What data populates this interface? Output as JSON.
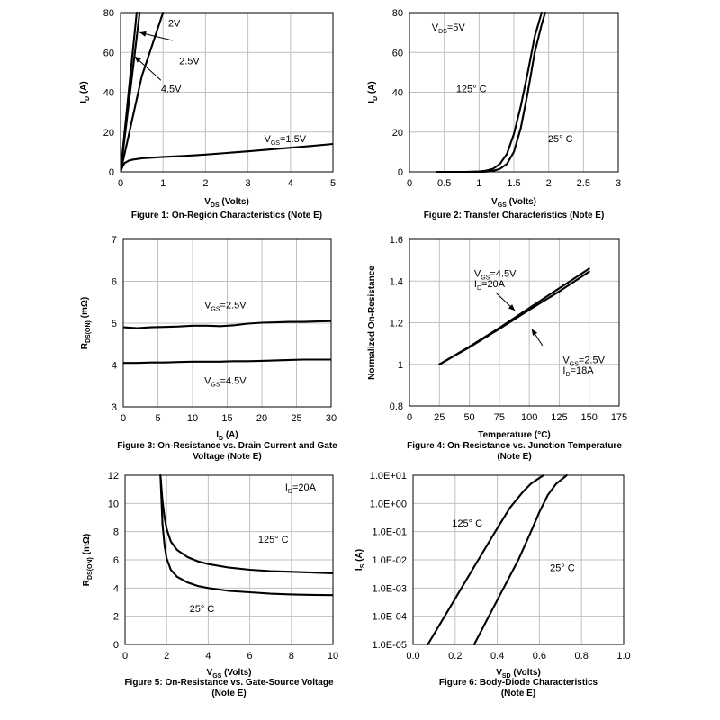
{
  "chart_data": [
    {
      "type": "line",
      "caption": "Figure 1: On-Region Characteristics (Note E)",
      "xlabel": {
        "main": "V",
        "sub": "DS",
        "rest": " (Volts)"
      },
      "ylabel": {
        "main": "I",
        "sub": "D",
        "rest": " (A)"
      },
      "xlim": [
        0,
        5
      ],
      "ylim": [
        0,
        80
      ],
      "xticks": [
        0,
        1,
        2,
        3,
        4,
        5
      ],
      "yticks": [
        0,
        20,
        40,
        60,
        80
      ],
      "grid": true,
      "series": [
        {
          "name": "V_GS=1.5V",
          "x": [
            0,
            0.05,
            0.1,
            0.2,
            0.3,
            0.5,
            1,
            1.5,
            2,
            2.5,
            3,
            3.5,
            4,
            4.5,
            5
          ],
          "y": [
            0,
            3,
            4.5,
            5.7,
            6.2,
            6.8,
            7.5,
            8,
            8.7,
            9.5,
            10.3,
            11.2,
            12.1,
            13,
            14
          ]
        },
        {
          "name": "2V",
          "x": [
            0,
            0.5,
            1.0
          ],
          "y": [
            0,
            48,
            80
          ]
        },
        {
          "name": "2.5V",
          "x": [
            0,
            0.45
          ],
          "y": [
            0,
            80
          ]
        },
        {
          "name": "4.5V",
          "x": [
            0,
            0.38
          ],
          "y": [
            0,
            80
          ]
        }
      ],
      "annotations": [
        {
          "parts": [
            {
              "t": "2V"
            }
          ],
          "x": 1.12,
          "y": 73,
          "anchor": "start"
        },
        {
          "parts": [
            {
              "t": "2.5V"
            }
          ],
          "x": 1.38,
          "y": 54,
          "anchor": "start"
        },
        {
          "parts": [
            {
              "t": "4.5V"
            }
          ],
          "x": 0.95,
          "y": 40,
          "anchor": "start"
        },
        {
          "parts": [
            {
              "t": "V"
            },
            {
              "t": "GS",
              "sub": true
            },
            {
              "t": "=1.5V"
            }
          ],
          "x": 3.38,
          "y": 15,
          "anchor": "start"
        }
      ],
      "arrows": [
        {
          "from": [
            1.22,
            66
          ],
          "to": [
            0.45,
            70
          ]
        },
        {
          "from": [
            0.95,
            46
          ],
          "to": [
            0.33,
            58
          ]
        }
      ]
    },
    {
      "type": "line",
      "caption": "Figure 2: Transfer Characteristics (Note E)",
      "xlabel": {
        "main": "V",
        "sub": "GS",
        "rest": " (Volts)"
      },
      "ylabel": {
        "main": "I",
        "sub": "D",
        "rest": " (A)"
      },
      "xlim": [
        0,
        3
      ],
      "ylim": [
        0,
        80
      ],
      "xticks": [
        0,
        0.5,
        1,
        1.5,
        2,
        2.5,
        3
      ],
      "yticks": [
        0,
        20,
        40,
        60,
        80
      ],
      "grid": true,
      "series": [
        {
          "name": "125° C",
          "x": [
            0.4,
            0.8,
            1.0,
            1.1,
            1.2,
            1.3,
            1.4,
            1.5,
            1.6,
            1.7,
            1.8,
            1.9
          ],
          "y": [
            0,
            0,
            0.2,
            0.6,
            1.5,
            4,
            9,
            19,
            33,
            50,
            68,
            80
          ]
        },
        {
          "name": "25° C",
          "x": [
            0.4,
            0.8,
            1.0,
            1.1,
            1.2,
            1.3,
            1.4,
            1.5,
            1.6,
            1.7,
            1.8,
            1.9,
            1.95
          ],
          "y": [
            0,
            0,
            0,
            0.1,
            0.5,
            1.5,
            4,
            10,
            22,
            40,
            60,
            74,
            80
          ]
        }
      ],
      "annotations": [
        {
          "parts": [
            {
              "t": "V"
            },
            {
              "t": "DS",
              "sub": true
            },
            {
              "t": "=5V"
            }
          ],
          "x": 0.32,
          "y": 71,
          "anchor": "start"
        },
        {
          "parts": [
            {
              "t": "125° C"
            }
          ],
          "x": 0.67,
          "y": 40,
          "anchor": "start"
        },
        {
          "parts": [
            {
              "t": "25° C"
            }
          ],
          "x": 1.99,
          "y": 15,
          "anchor": "start"
        }
      ],
      "arrows": []
    },
    {
      "type": "line",
      "caption": [
        "Figure 3: On-Resistance vs. Drain Current and Gate",
        "Voltage (Note E)"
      ],
      "xlabel": {
        "main": "I",
        "sub": "D",
        "rest": " (A)"
      },
      "ylabel": {
        "main": "R",
        "sub": "DS(ON)",
        "rest": " (mΩ)"
      },
      "xlim": [
        0,
        30
      ],
      "ylim": [
        3,
        7
      ],
      "xticks": [
        0,
        5,
        10,
        15,
        20,
        25,
        30
      ],
      "yticks": [
        3,
        4,
        5,
        6,
        7
      ],
      "grid": true,
      "series": [
        {
          "name": "V_GS=2.5V",
          "x": [
            0,
            2,
            4,
            6,
            8,
            10,
            12,
            14,
            16,
            18,
            20,
            22,
            24,
            26,
            28,
            30
          ],
          "y": [
            4.9,
            4.88,
            4.9,
            4.91,
            4.92,
            4.94,
            4.94,
            4.93,
            4.95,
            4.99,
            5.01,
            5.02,
            5.03,
            5.03,
            5.04,
            5.05
          ]
        },
        {
          "name": "V_GS=4.5V",
          "x": [
            0,
            2,
            4,
            6,
            8,
            10,
            12,
            14,
            16,
            18,
            20,
            22,
            24,
            26,
            28,
            30
          ],
          "y": [
            4.05,
            4.05,
            4.06,
            4.06,
            4.07,
            4.08,
            4.08,
            4.08,
            4.09,
            4.09,
            4.1,
            4.11,
            4.12,
            4.13,
            4.13,
            4.13
          ]
        }
      ],
      "annotations": [
        {
          "parts": [
            {
              "t": "V"
            },
            {
              "t": "GS",
              "sub": true
            },
            {
              "t": "=2.5V"
            }
          ],
          "x": 11.7,
          "y": 5.35,
          "anchor": "start"
        },
        {
          "parts": [
            {
              "t": "V"
            },
            {
              "t": "GS",
              "sub": true
            },
            {
              "t": "=4.5V"
            }
          ],
          "x": 11.7,
          "y": 3.55,
          "anchor": "start"
        }
      ],
      "arrows": []
    },
    {
      "type": "line",
      "caption": [
        "Figure 4: On-Resistance vs. Junction Temperature",
        "(Note E)"
      ],
      "xlabel": {
        "main": "Temperature (°C)"
      },
      "ylabel": {
        "main": "Normalized On-Resistance"
      },
      "xlim": [
        0,
        175
      ],
      "ylim": [
        0.8,
        1.6
      ],
      "xticks": [
        0,
        25,
        50,
        75,
        100,
        125,
        150,
        175
      ],
      "yticks": [
        0.8,
        1,
        1.2,
        1.4,
        1.6
      ],
      "grid": true,
      "series": [
        {
          "name": "V_GS=4.5V I_D=20A",
          "x": [
            25,
            50,
            75,
            100,
            125,
            150
          ],
          "y": [
            1.0,
            1.085,
            1.175,
            1.27,
            1.365,
            1.46
          ]
        },
        {
          "name": "V_GS=2.5V I_D=18A",
          "x": [
            25,
            50,
            75,
            100,
            125,
            150
          ],
          "y": [
            1.0,
            1.082,
            1.17,
            1.262,
            1.35,
            1.445
          ]
        }
      ],
      "annotations": [
        {
          "parts": [
            {
              "t": "V"
            },
            {
              "t": "GS",
              "sub": true
            },
            {
              "t": "=4.5V"
            }
          ],
          "x": 54,
          "y": 1.42,
          "anchor": "start"
        },
        {
          "parts": [
            {
              "t": "I"
            },
            {
              "t": "D",
              "sub": true
            },
            {
              "t": "=20A"
            }
          ],
          "x": 54,
          "y": 1.37,
          "anchor": "start"
        },
        {
          "parts": [
            {
              "t": "V"
            },
            {
              "t": "GS",
              "sub": true
            },
            {
              "t": "=2.5V"
            }
          ],
          "x": 128,
          "y": 1.005,
          "anchor": "start"
        },
        {
          "parts": [
            {
              "t": "I"
            },
            {
              "t": "D",
              "sub": true
            },
            {
              "t": "=18A"
            }
          ],
          "x": 128,
          "y": 0.955,
          "anchor": "start"
        }
      ],
      "arrows": [
        {
          "from": [
            72,
            1.345
          ],
          "to": [
            88,
            1.258
          ]
        },
        {
          "from": [
            111,
            1.09
          ],
          "to": [
            102,
            1.17
          ]
        }
      ]
    },
    {
      "type": "line",
      "caption": [
        "Figure 5: On-Resistance vs. Gate-Source Voltage",
        "(Note E)"
      ],
      "xlabel": {
        "main": "V",
        "sub": "GS",
        "rest": " (Volts)"
      },
      "ylabel": {
        "main": "R",
        "sub": "DS(ON)",
        "rest": " (mΩ)"
      },
      "xlim": [
        0,
        10
      ],
      "ylim": [
        0,
        12
      ],
      "xticks": [
        0,
        2,
        4,
        6,
        8,
        10
      ],
      "yticks": [
        0,
        2,
        4,
        6,
        8,
        10,
        12
      ],
      "grid": true,
      "series": [
        {
          "name": "125° C",
          "x": [
            1.7,
            1.8,
            1.9,
            2.0,
            2.2,
            2.5,
            3,
            3.5,
            4,
            5,
            6,
            7,
            8,
            9,
            10
          ],
          "y": [
            12,
            10.2,
            9.0,
            8.2,
            7.3,
            6.7,
            6.2,
            5.9,
            5.7,
            5.45,
            5.3,
            5.2,
            5.15,
            5.1,
            5.05
          ]
        },
        {
          "name": "25° C",
          "x": [
            1.7,
            1.8,
            1.9,
            2.0,
            2.2,
            2.5,
            3,
            3.5,
            4,
            5,
            6,
            7,
            8,
            9,
            10
          ],
          "y": [
            12,
            8.5,
            7.0,
            6.1,
            5.3,
            4.8,
            4.4,
            4.15,
            4.0,
            3.8,
            3.7,
            3.6,
            3.55,
            3.52,
            3.5
          ]
        }
      ],
      "annotations": [
        {
          "parts": [
            {
              "t": "I"
            },
            {
              "t": "D",
              "sub": true
            },
            {
              "t": "=20A"
            }
          ],
          "x": 7.7,
          "y": 10.9,
          "anchor": "start"
        },
        {
          "parts": [
            {
              "t": "125° C"
            }
          ],
          "x": 6.4,
          "y": 7.2,
          "anchor": "start"
        },
        {
          "parts": [
            {
              "t": "25° C"
            }
          ],
          "x": 3.1,
          "y": 2.3,
          "anchor": "start"
        }
      ],
      "arrows": []
    },
    {
      "type": "line",
      "caption": [
        "Figure 6: Body-Diode Characteristics",
        "(Note E)"
      ],
      "xlabel": {
        "main": "V",
        "sub": "SD",
        "rest": " (Volts)"
      },
      "ylabel": {
        "main": "I",
        "sub": "S",
        "rest": " (A)"
      },
      "xlim": [
        0,
        1.0
      ],
      "ylim": [
        1e-05,
        10
      ],
      "yscale": "log",
      "xticks": [
        0,
        0.2,
        0.4,
        0.6,
        0.8,
        1.0
      ],
      "xticklabels": [
        "0.0",
        "0.2",
        "0.4",
        "0.6",
        "0.8",
        "1.0"
      ],
      "yticks": [
        1e-05,
        0.0001,
        0.001,
        0.01,
        0.1,
        1,
        10
      ],
      "yticklabels": [
        "1.0E-05",
        "1.0E-04",
        "1.0E-03",
        "1.0E-02",
        "1.0E-01",
        "1.0E+00",
        "1.0E+01"
      ],
      "grid": true,
      "series": [
        {
          "name": "125° C",
          "x": [
            0.07,
            0.15,
            0.23,
            0.31,
            0.39,
            0.46,
            0.52,
            0.56,
            0.6,
            0.62
          ],
          "y": [
            1e-05,
            0.0001,
            0.001,
            0.01,
            0.1,
            0.7,
            2.5,
            5,
            8,
            10
          ]
        },
        {
          "name": "25° C",
          "x": [
            0.29,
            0.36,
            0.43,
            0.5,
            0.56,
            0.6,
            0.64,
            0.68,
            0.73
          ],
          "y": [
            1e-05,
            0.0001,
            0.001,
            0.01,
            0.1,
            0.5,
            2,
            5,
            10
          ]
        }
      ],
      "annotations": [
        {
          "parts": [
            {
              "t": "125° C"
            }
          ],
          "x": 0.185,
          "y": 0.15,
          "anchor": "start"
        },
        {
          "parts": [
            {
              "t": "25° C"
            }
          ],
          "x": 0.65,
          "y": 0.004,
          "anchor": "start"
        }
      ],
      "arrows": []
    }
  ]
}
